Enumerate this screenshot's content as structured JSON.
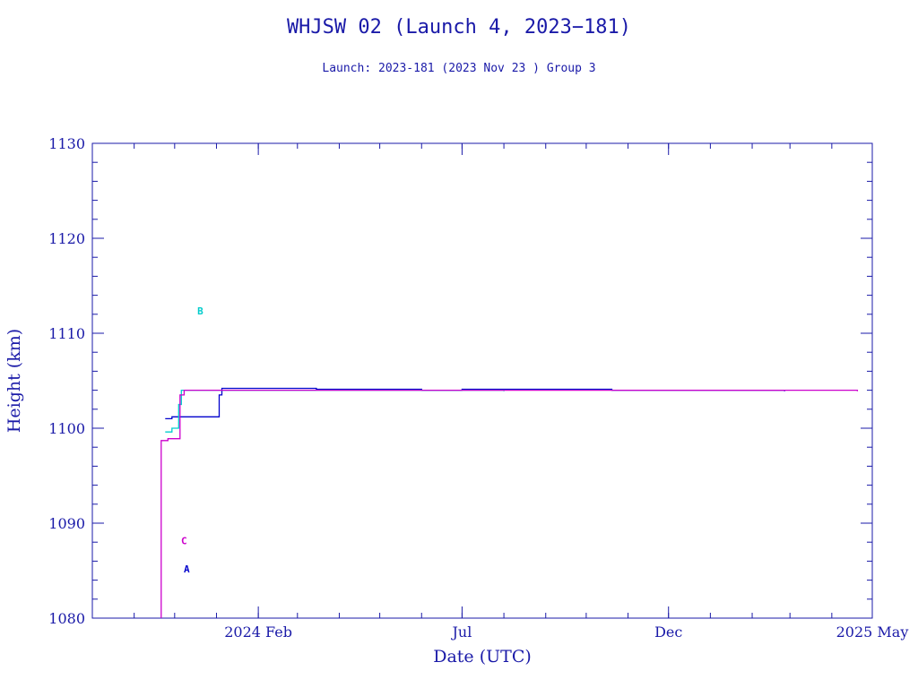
{
  "colors": {
    "axis": "#1a1aa8",
    "text": "#1a1aa8"
  },
  "chart_data": {
    "type": "line",
    "title": "WHJSW 02 (Launch 4, 2023−181)",
    "subtitle": "Launch: 2023-181  (2023 Nov 23 )  Group 3",
    "xlabel": "Date (UTC)",
    "ylabel": "Height (km)",
    "xlim": [
      "2023-10-01",
      "2025-05-01"
    ],
    "ylim": [
      1080,
      1130
    ],
    "x_ticks": [
      {
        "date": "2024-02-01",
        "label": "2024 Feb"
      },
      {
        "date": "2024-07-01",
        "label": "Jul"
      },
      {
        "date": "2024-12-01",
        "label": "Dec"
      },
      {
        "date": "2025-05-01",
        "label": "2025 May"
      }
    ],
    "y_ticks": [
      1080,
      1090,
      1100,
      1110,
      1120,
      1130
    ],
    "series": [
      {
        "name": "A",
        "color": "#0000cc",
        "label_at": {
          "date": "2023-12-10",
          "value": 1084.8
        },
        "points": [
          {
            "date": "2023-11-24",
            "value": 1101.0
          },
          {
            "date": "2023-11-29",
            "value": 1101.2
          },
          {
            "date": "2023-12-05",
            "value": 1101.2
          },
          {
            "date": "2024-01-02",
            "value": 1101.2
          },
          {
            "date": "2024-01-03",
            "value": 1103.5
          },
          {
            "date": "2024-01-05",
            "value": 1104.2
          },
          {
            "date": "2024-03-15",
            "value": 1104.1
          },
          {
            "date": "2024-06-01",
            "value": 1104.0
          },
          {
            "date": "2024-07-01",
            "value": 1104.1
          },
          {
            "date": "2024-10-20",
            "value": 1104.0
          },
          {
            "date": "2025-02-25",
            "value": 1103.9
          }
        ]
      },
      {
        "name": "B",
        "color": "#00cccc",
        "label_at": {
          "date": "2023-12-20",
          "value": 1112.0
        },
        "points": [
          {
            "date": "2023-11-24",
            "value": 1099.6
          },
          {
            "date": "2023-11-29",
            "value": 1100.0
          },
          {
            "date": "2023-12-04",
            "value": 1102.5
          },
          {
            "date": "2023-12-06",
            "value": 1104.0
          },
          {
            "date": "2024-03-15",
            "value": 1104.0
          },
          {
            "date": "2024-06-01",
            "value": 1104.0
          },
          {
            "date": "2024-08-01",
            "value": 1103.9
          }
        ]
      },
      {
        "name": "C",
        "color": "#cc00cc",
        "label_at": {
          "date": "2023-12-08",
          "value": 1087.8
        },
        "points": [
          {
            "date": "2023-11-21",
            "value": 1080.0
          },
          {
            "date": "2023-11-21",
            "value": 1098.7
          },
          {
            "date": "2023-11-26",
            "value": 1098.9
          },
          {
            "date": "2023-12-04",
            "value": 1098.9
          },
          {
            "date": "2023-12-05",
            "value": 1103.5
          },
          {
            "date": "2023-12-08",
            "value": 1104.0
          },
          {
            "date": "2024-06-01",
            "value": 1104.0
          },
          {
            "date": "2025-04-20",
            "value": 1103.9
          }
        ]
      }
    ],
    "grid": false,
    "legend": "none"
  }
}
